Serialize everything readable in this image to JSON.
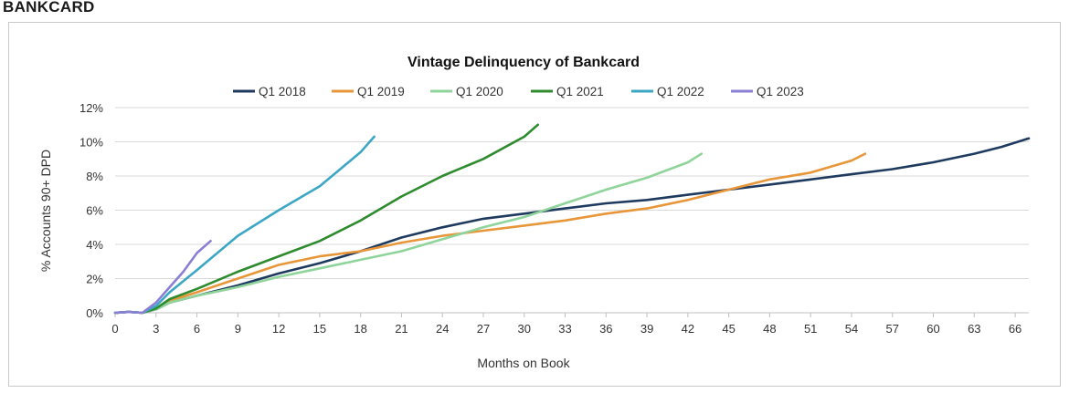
{
  "page": {
    "heading": "BANKCARD"
  },
  "chart_data": {
    "type": "line",
    "title": "Vintage Delinquency of Bankcard",
    "xlabel": "Months on Book",
    "ylabel": "% Accounts 90+ DPD",
    "xlim": [
      0,
      67
    ],
    "ylim": [
      0,
      12
    ],
    "x_ticks": [
      "0",
      "3",
      "6",
      "9",
      "12",
      "15",
      "18",
      "21",
      "24",
      "27",
      "30",
      "33",
      "36",
      "39",
      "42",
      "45",
      "48",
      "51",
      "54",
      "57",
      "60",
      "63",
      "66"
    ],
    "y_ticks": [
      "0%",
      "2%",
      "4%",
      "6%",
      "8%",
      "10%",
      "12%"
    ],
    "grid": "horizontal",
    "legend_position": "top",
    "series": [
      {
        "name": "Q1 2018",
        "color": "#1f3a5f",
        "points": [
          [
            0,
            0
          ],
          [
            1,
            0.05
          ],
          [
            2,
            0
          ],
          [
            3,
            0.2
          ],
          [
            4,
            0.6
          ],
          [
            6,
            1.0
          ],
          [
            9,
            1.6
          ],
          [
            12,
            2.3
          ],
          [
            15,
            2.9
          ],
          [
            18,
            3.6
          ],
          [
            21,
            4.4
          ],
          [
            24,
            5.0
          ],
          [
            27,
            5.5
          ],
          [
            30,
            5.8
          ],
          [
            33,
            6.1
          ],
          [
            36,
            6.4
          ],
          [
            39,
            6.6
          ],
          [
            42,
            6.9
          ],
          [
            45,
            7.2
          ],
          [
            48,
            7.5
          ],
          [
            51,
            7.8
          ],
          [
            54,
            8.1
          ],
          [
            57,
            8.4
          ],
          [
            60,
            8.8
          ],
          [
            63,
            9.3
          ],
          [
            65,
            9.7
          ],
          [
            67,
            10.2
          ]
        ]
      },
      {
        "name": "Q1 2019",
        "color": "#e8963a",
        "points": [
          [
            0,
            0
          ],
          [
            1,
            0.05
          ],
          [
            2,
            0
          ],
          [
            3,
            0.25
          ],
          [
            4,
            0.7
          ],
          [
            6,
            1.2
          ],
          [
            9,
            2.0
          ],
          [
            12,
            2.8
          ],
          [
            15,
            3.3
          ],
          [
            18,
            3.6
          ],
          [
            21,
            4.1
          ],
          [
            24,
            4.5
          ],
          [
            27,
            4.8
          ],
          [
            30,
            5.1
          ],
          [
            33,
            5.4
          ],
          [
            36,
            5.8
          ],
          [
            39,
            6.1
          ],
          [
            42,
            6.6
          ],
          [
            45,
            7.2
          ],
          [
            48,
            7.8
          ],
          [
            51,
            8.2
          ],
          [
            54,
            8.9
          ],
          [
            55,
            9.3
          ]
        ]
      },
      {
        "name": "Q1 2020",
        "color": "#8fd49a",
        "points": [
          [
            0,
            0
          ],
          [
            1,
            0.05
          ],
          [
            2,
            0
          ],
          [
            3,
            0.2
          ],
          [
            4,
            0.6
          ],
          [
            6,
            1.0
          ],
          [
            9,
            1.5
          ],
          [
            12,
            2.1
          ],
          [
            15,
            2.6
          ],
          [
            18,
            3.1
          ],
          [
            21,
            3.6
          ],
          [
            24,
            4.3
          ],
          [
            27,
            5.0
          ],
          [
            30,
            5.6
          ],
          [
            33,
            6.4
          ],
          [
            36,
            7.2
          ],
          [
            39,
            7.9
          ],
          [
            42,
            8.8
          ],
          [
            43,
            9.3
          ]
        ]
      },
      {
        "name": "Q1 2021",
        "color": "#2e8b2e",
        "points": [
          [
            0,
            0
          ],
          [
            1,
            0.05
          ],
          [
            2,
            0
          ],
          [
            3,
            0.25
          ],
          [
            4,
            0.8
          ],
          [
            6,
            1.4
          ],
          [
            9,
            2.4
          ],
          [
            12,
            3.3
          ],
          [
            15,
            4.2
          ],
          [
            18,
            5.4
          ],
          [
            21,
            6.8
          ],
          [
            24,
            8.0
          ],
          [
            27,
            9.0
          ],
          [
            30,
            10.3
          ],
          [
            31,
            11.0
          ]
        ]
      },
      {
        "name": "Q1 2022",
        "color": "#3ba7c4",
        "points": [
          [
            0,
            0
          ],
          [
            1,
            0.05
          ],
          [
            2,
            0
          ],
          [
            3,
            0.4
          ],
          [
            4,
            1.2
          ],
          [
            6,
            2.5
          ],
          [
            9,
            4.5
          ],
          [
            12,
            6.0
          ],
          [
            15,
            7.4
          ],
          [
            18,
            9.4
          ],
          [
            19,
            10.3
          ]
        ]
      },
      {
        "name": "Q1 2023",
        "color": "#8a7fd4",
        "points": [
          [
            0,
            0
          ],
          [
            1,
            0.05
          ],
          [
            2,
            0
          ],
          [
            3,
            0.6
          ],
          [
            4,
            1.5
          ],
          [
            5,
            2.4
          ],
          [
            6,
            3.5
          ],
          [
            7,
            4.2
          ]
        ]
      }
    ]
  }
}
